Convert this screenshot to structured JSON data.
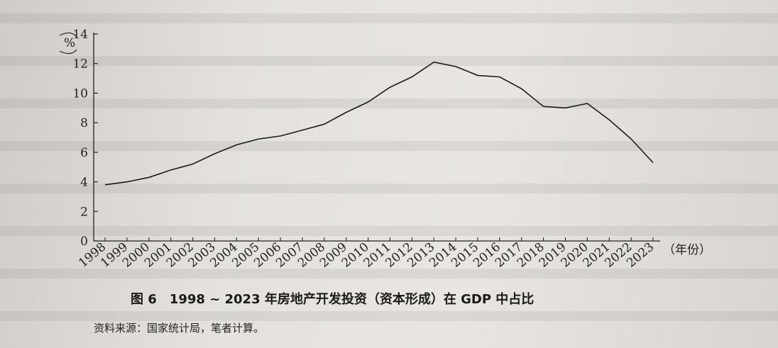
{
  "caption": "图 6　1998 ~ 2023 年房地产开发投资（资本形成）在 GDP 中占比",
  "source": "资料来源：国家统计局，笔者计算。",
  "chart_data": {
    "type": "line",
    "title": "",
    "ylabel": "%",
    "xlabel": "（年份）",
    "ylim": [
      0,
      14
    ],
    "yticks": [
      "0",
      "2",
      "4",
      "6",
      "8",
      "10",
      "12",
      "14"
    ],
    "categories": [
      "1998",
      "1999",
      "2000",
      "2001",
      "2002",
      "2003",
      "2004",
      "2005",
      "2006",
      "2007",
      "2008",
      "2009",
      "2010",
      "2011",
      "2012",
      "2013",
      "2014",
      "2015",
      "2016",
      "2017",
      "2018",
      "2019",
      "2020",
      "2021",
      "2022",
      "2023"
    ],
    "series": [
      {
        "values": [
          3.8,
          4.0,
          4.3,
          4.8,
          5.2,
          5.9,
          6.5,
          6.9,
          7.1,
          7.5,
          7.9,
          8.7,
          9.4,
          10.4,
          11.1,
          12.1,
          11.8,
          11.2,
          11.1,
          10.3,
          9.1,
          9.0,
          9.3,
          8.2,
          6.9,
          5.3
        ],
        "color": "#1c1c1c"
      }
    ],
    "grid": false,
    "legend": "none"
  }
}
